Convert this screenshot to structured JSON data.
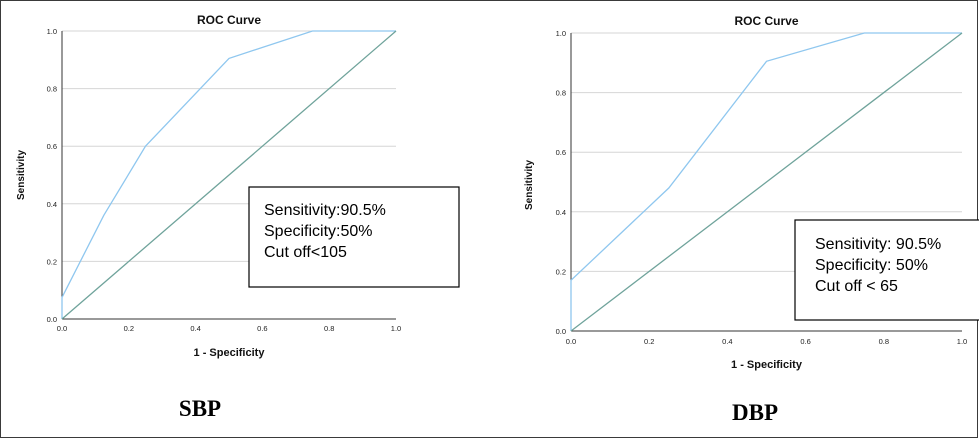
{
  "chart_data": [
    {
      "type": "line",
      "title": "ROC Curve",
      "xlabel": "1 - Specificity",
      "ylabel": "Sensitivity",
      "xlim": [
        0,
        1
      ],
      "ylim": [
        0,
        1
      ],
      "xticks": [
        "0.0",
        "0.2",
        "0.4",
        "0.6",
        "0.8",
        "1.0"
      ],
      "yticks": [
        "0.0",
        "0.2",
        "0.4",
        "0.6",
        "0.8",
        "1.0"
      ],
      "grid": "horizontal",
      "series": [
        {
          "color": "#8fc7ef",
          "x": [
            0,
            0,
            0.125,
            0.25,
            0.5,
            0.75,
            1.0
          ],
          "y": [
            0,
            0.075,
            0.36,
            0.6,
            0.905,
            1.0,
            1.0
          ]
        },
        {
          "color": "#6fa39b",
          "x": [
            0,
            1
          ],
          "y": [
            0,
            1
          ]
        }
      ],
      "annotation": [
        "Sensitivity:90.5%",
        "Specificity:50%",
        "Cut off<105"
      ],
      "caption": "SBP"
    },
    {
      "type": "line",
      "title": "ROC Curve",
      "xlabel": "1 - Specificity",
      "ylabel": "Sensitivity",
      "xlim": [
        0,
        1
      ],
      "ylim": [
        0,
        1
      ],
      "xticks": [
        "0.0",
        "0.2",
        "0.4",
        "0.6",
        "0.8",
        "1.0"
      ],
      "yticks": [
        "0.0",
        "0.2",
        "0.4",
        "0.6",
        "0.8",
        "1.0"
      ],
      "grid": "horizontal",
      "series": [
        {
          "color": "#8fc7ef",
          "x": [
            0,
            0,
            0.25,
            0.5,
            0.75,
            1.0
          ],
          "y": [
            0,
            0.17,
            0.48,
            0.905,
            1.0,
            1.0
          ]
        },
        {
          "color": "#6fa39b",
          "x": [
            0,
            1
          ],
          "y": [
            0,
            1
          ]
        }
      ],
      "annotation": [
        "Sensitivity: 90.5%",
        "Specificity: 50%",
        "Cut off < 65"
      ],
      "caption": "DBP"
    }
  ]
}
